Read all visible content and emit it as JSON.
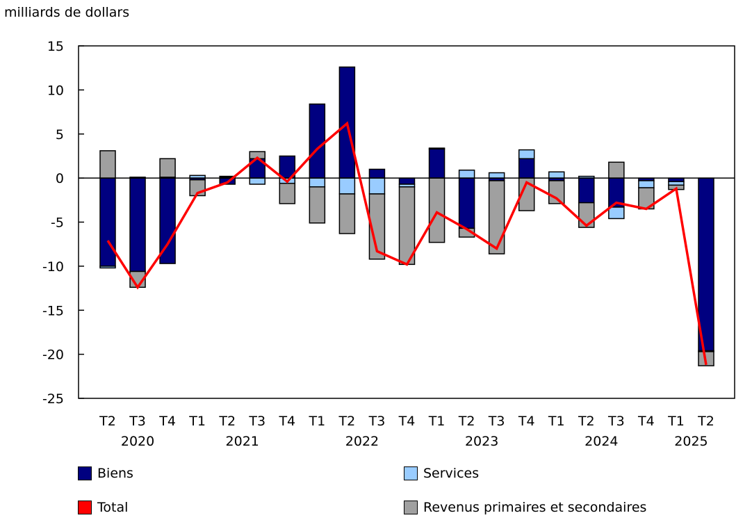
{
  "chart_data": {
    "type": "bar",
    "stacked": true,
    "ylabel": "milliards de dollars",
    "ylim": [
      -25,
      15
    ],
    "yticks": [
      15,
      10,
      5,
      0,
      -5,
      -10,
      -15,
      -20,
      -25
    ],
    "grid": false,
    "categories": [
      "T2",
      "T3",
      "T4",
      "T1",
      "T2",
      "T3",
      "T4",
      "T1",
      "T2",
      "T3",
      "T4",
      "T1",
      "T2",
      "T3",
      "T4",
      "T1",
      "T2",
      "T3",
      "T4",
      "T1",
      "T2"
    ],
    "years": [
      {
        "label": "2020",
        "from": 0,
        "to": 2
      },
      {
        "label": "2021",
        "from": 3,
        "to": 6
      },
      {
        "label": "2022",
        "from": 7,
        "to": 10
      },
      {
        "label": "2023",
        "from": 11,
        "to": 14
      },
      {
        "label": "2024",
        "from": 15,
        "to": 18
      },
      {
        "label": "2025",
        "from": 19,
        "to": 20
      }
    ],
    "series": [
      {
        "name": "Biens",
        "kind": "bar",
        "color": "#000080",
        "values": [
          -10.0,
          -10.6,
          -9.7,
          -0.2,
          -0.7,
          2.2,
          2.5,
          8.4,
          12.6,
          1.0,
          -0.7,
          3.3,
          -5.7,
          -0.3,
          2.2,
          -0.3,
          -2.8,
          -3.3,
          -0.3,
          -0.4,
          -19.6
        ]
      },
      {
        "name": "Services",
        "kind": "bar",
        "color": "#99ccff",
        "values": [
          -0.2,
          0.1,
          0.1,
          0.3,
          0.1,
          -0.7,
          -0.6,
          -1.0,
          -1.8,
          -1.8,
          -0.3,
          0.1,
          0.9,
          0.6,
          1.0,
          0.7,
          0.2,
          -1.3,
          -0.8,
          -0.4,
          -0.1
        ]
      },
      {
        "name": "Revenus primaires et secondaires",
        "kind": "bar",
        "color": "#a0a0a0",
        "values": [
          3.1,
          -1.8,
          2.1,
          -1.8,
          0.1,
          0.8,
          -2.3,
          -4.1,
          -4.5,
          -7.4,
          -8.8,
          -7.3,
          -1.0,
          -8.3,
          -3.7,
          -2.6,
          -2.8,
          1.8,
          -2.4,
          -0.5,
          -1.6
        ]
      },
      {
        "name": "Total",
        "kind": "line",
        "color": "#ff0000",
        "values": [
          -7.1,
          -12.4,
          -7.5,
          -1.7,
          -0.5,
          2.3,
          -0.4,
          3.3,
          6.2,
          -8.3,
          -9.8,
          -3.9,
          -5.8,
          -8.0,
          -0.5,
          -2.3,
          -5.4,
          -2.8,
          -3.5,
          -1.2,
          -21.2
        ]
      }
    ],
    "legend_position": "bottom"
  }
}
